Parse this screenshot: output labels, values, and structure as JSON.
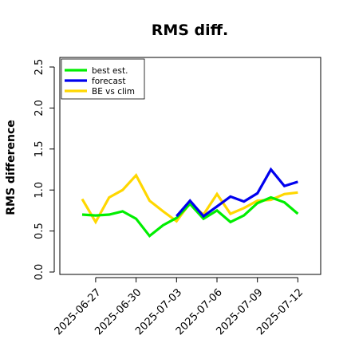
{
  "chart_data": {
    "type": "line",
    "title": "RMS diff.",
    "xlabel": "",
    "ylabel": "RMS difference",
    "ylim": [
      0.0,
      2.5
    ],
    "yticks": [
      "0.0",
      "0.5",
      "1.0",
      "1.5",
      "2.0",
      "2.5"
    ],
    "x": [
      "2025-06-26",
      "2025-06-27",
      "2025-06-28",
      "2025-06-29",
      "2025-06-30",
      "2025-07-01",
      "2025-07-02",
      "2025-07-03",
      "2025-07-04",
      "2025-07-05",
      "2025-07-06",
      "2025-07-07",
      "2025-07-08",
      "2025-07-09",
      "2025-07-10",
      "2025-07-11",
      "2025-07-12"
    ],
    "xticks": [
      "2025-06-27",
      "2025-06-30",
      "2025-07-03",
      "2025-07-06",
      "2025-07-09",
      "2025-07-12"
    ],
    "highlight_tick": "2025-07-03",
    "highlight_color": "#228B22",
    "grid": false,
    "legend_position": "top-left",
    "series": [
      {
        "name": "best est.",
        "color": "#00EE00",
        "values": [
          0.7,
          0.69,
          0.7,
          0.74,
          0.65,
          0.44,
          0.57,
          0.66,
          0.83,
          0.65,
          0.75,
          0.61,
          0.69,
          0.84,
          0.91,
          0.85,
          0.71
        ]
      },
      {
        "name": "forecast",
        "color": "#0000EE",
        "values": [
          null,
          null,
          null,
          null,
          null,
          null,
          null,
          0.68,
          0.87,
          0.68,
          0.8,
          0.92,
          0.86,
          0.96,
          1.25,
          1.05,
          1.1
        ]
      },
      {
        "name": "BE vs clim",
        "color": "#FFD700",
        "values": [
          0.89,
          0.61,
          0.91,
          1.0,
          1.18,
          0.87,
          0.74,
          0.62,
          0.84,
          0.7,
          0.95,
          0.71,
          0.78,
          0.87,
          0.88,
          0.95,
          0.97
        ]
      }
    ]
  }
}
